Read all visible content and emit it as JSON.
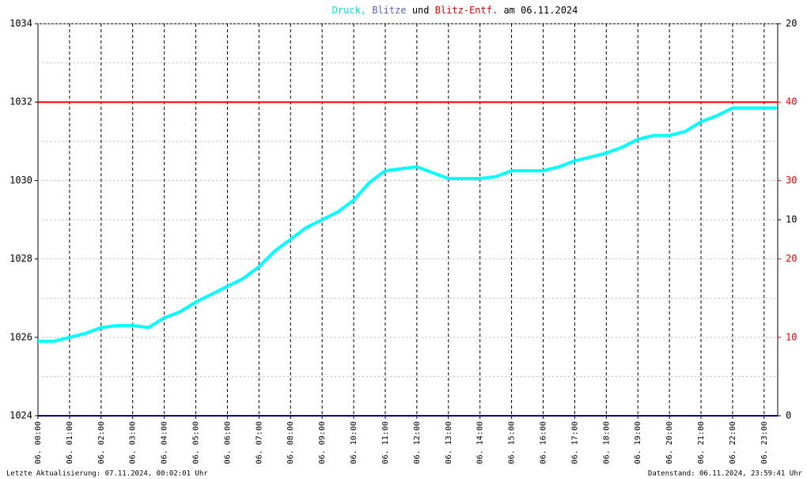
{
  "chart_data": {
    "type": "line",
    "title_parts": [
      "Druck,",
      "Blitze",
      "und",
      "Blitz-Entf.",
      "am 06.11.2024"
    ],
    "title_colors": [
      "#00e0e0",
      "#6060c0",
      "#000000",
      "#e00000",
      "#000000"
    ],
    "footer_left": "Letzte Aktualisierung: 07.11.2024, 00:02:01 Uhr",
    "footer_right": "Datenstand: 06.11.2024, 23:59:41 Uhr",
    "xlim": [
      0,
      23.43
    ],
    "xticks": [
      {
        "value": 0,
        "label": "06. 00:00"
      },
      {
        "value": 1,
        "label": "06. 01:00"
      },
      {
        "value": 2,
        "label": "06. 02:00"
      },
      {
        "value": 3,
        "label": "06. 03:00"
      },
      {
        "value": 4,
        "label": "06. 04:00"
      },
      {
        "value": 5,
        "label": "06. 05:00"
      },
      {
        "value": 6,
        "label": "06. 06:00"
      },
      {
        "value": 7,
        "label": "06. 07:00"
      },
      {
        "value": 8,
        "label": "06. 08:00"
      },
      {
        "value": 9,
        "label": "06. 09:00"
      },
      {
        "value": 10,
        "label": "06. 10:00"
      },
      {
        "value": 11,
        "label": "06. 11:00"
      },
      {
        "value": 12,
        "label": "06. 12:00"
      },
      {
        "value": 13,
        "label": "06. 13:00"
      },
      {
        "value": 14,
        "label": "06. 14:00"
      },
      {
        "value": 15,
        "label": "06. 15:00"
      },
      {
        "value": 16,
        "label": "06. 16:00"
      },
      {
        "value": 17,
        "label": "06. 17:00"
      },
      {
        "value": 18,
        "label": "06. 18:00"
      },
      {
        "value": 19,
        "label": "06. 19:00"
      },
      {
        "value": 20,
        "label": "06. 20:00"
      },
      {
        "value": 21,
        "label": "06. 21:00"
      },
      {
        "value": 22,
        "label": "06. 22:00"
      },
      {
        "value": 23,
        "label": "06. 23:00"
      }
    ],
    "ylim": [
      1024,
      1034
    ],
    "yticks": [
      1024,
      1026,
      1028,
      1030,
      1032,
      1034
    ],
    "yminor": [
      1025,
      1027,
      1029,
      1031,
      1033
    ],
    "y2lim": [
      0,
      20
    ],
    "y2ticks": [
      0,
      10,
      20
    ],
    "y3lim": [
      0,
      50
    ],
    "y3ticks": [
      10,
      20,
      30,
      40
    ],
    "y3color": "#e00000",
    "series": [
      {
        "name": "Druck",
        "color": "#00ffff",
        "axis": "y",
        "x": [
          0,
          0.5,
          1,
          1.5,
          2,
          2.5,
          3,
          3.5,
          4,
          4.5,
          5,
          5.5,
          6,
          6.5,
          7,
          7.5,
          8,
          8.5,
          9,
          9.5,
          10,
          10.5,
          11,
          11.5,
          12,
          12.5,
          13,
          13.5,
          14,
          14.5,
          15,
          15.5,
          16,
          16.5,
          17,
          17.5,
          18,
          18.5,
          19,
          19.5,
          20,
          20.5,
          21,
          21.5,
          22,
          22.5,
          23,
          23.4
        ],
        "values": [
          1025.9,
          1025.9,
          1026.0,
          1026.1,
          1026.25,
          1026.3,
          1026.3,
          1026.25,
          1026.5,
          1026.65,
          1026.9,
          1027.1,
          1027.3,
          1027.5,
          1027.8,
          1028.2,
          1028.5,
          1028.8,
          1029.0,
          1029.2,
          1029.5,
          1029.95,
          1030.25,
          1030.3,
          1030.35,
          1030.2,
          1030.05,
          1030.05,
          1030.05,
          1030.1,
          1030.25,
          1030.25,
          1030.25,
          1030.35,
          1030.5,
          1030.6,
          1030.7,
          1030.85,
          1031.05,
          1031.15,
          1031.15,
          1031.25,
          1031.5,
          1031.65,
          1031.85,
          1031.85,
          1031.85,
          1031.85
        ]
      },
      {
        "name": "Blitze",
        "color": "#000080",
        "axis": "y2",
        "x": [
          0,
          23.43
        ],
        "values": [
          0,
          0
        ]
      },
      {
        "name": "Blitz-Entf.",
        "color": "#ff0000",
        "axis": "y3",
        "x": [
          0,
          23.43
        ],
        "values": [
          40,
          40
        ]
      }
    ]
  }
}
